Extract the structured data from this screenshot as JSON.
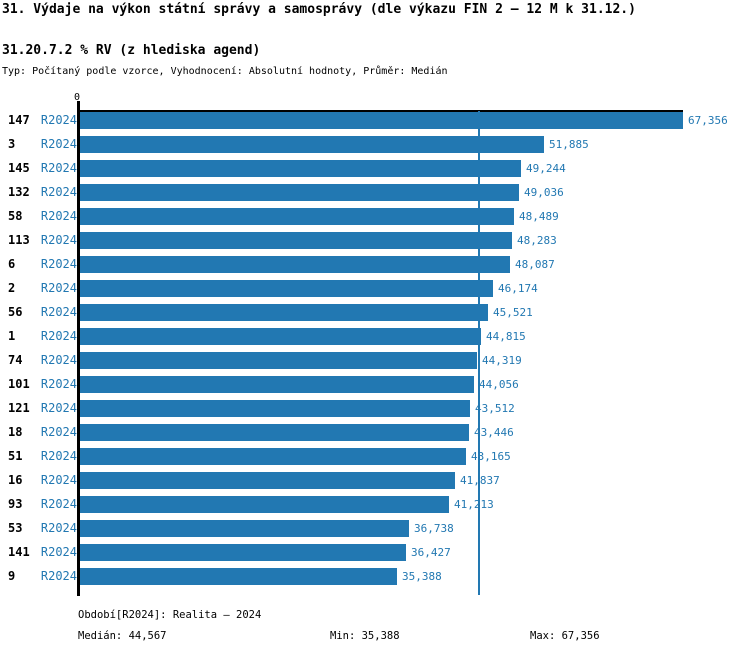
{
  "title": "31. Výdaje na výkon státní správy a samosprávy (dle výkazu FIN 2 – 12 M k 31.12.)",
  "subtitle": "31.20.7.2 % RV (z hlediska agend)",
  "meta_line": "Typ: Počítaný podle vzorce, Vyhodnocení: Absolutní hodnoty, Průměr: Medián",
  "axis": {
    "zero_label": "0"
  },
  "chart_data": {
    "type": "bar",
    "orientation": "horizontal",
    "title": "31.20.7.2 % RV (z hlediska agend)",
    "categories": [
      "147",
      "3",
      "145",
      "132",
      "58",
      "113",
      "6",
      "2",
      "56",
      "1",
      "74",
      "101",
      "121",
      "18",
      "51",
      "16",
      "93",
      "53",
      "141",
      "9"
    ],
    "series_label": "R2024",
    "values": [
      67356,
      51885,
      49244,
      49036,
      48489,
      48283,
      48087,
      46174,
      45521,
      44815,
      44319,
      44056,
      43512,
      43446,
      43165,
      41837,
      41213,
      36738,
      36427,
      35388
    ],
    "value_labels": [
      "67,356",
      "51,885",
      "49,244",
      "49,036",
      "48,489",
      "48,283",
      "48,087",
      "46,174",
      "45,521",
      "44,815",
      "44,319",
      "44,056",
      "43,512",
      "43,446",
      "43,165",
      "41,837",
      "41,213",
      "36,738",
      "36,427",
      "35,388"
    ],
    "xlim": [
      0,
      67356
    ],
    "median": 44567,
    "grid": false,
    "legend": "none",
    "bar_color": "#2278b2",
    "median_line_color": "#2278b2",
    "label_color": "#2278b2",
    "category_color": "#000000"
  },
  "footer": {
    "period": "Období[R2024]: Realita – 2024",
    "median": "Medián: 44,567",
    "min": "Min: 35,388",
    "max": "Max: 67,356"
  },
  "colors": {
    "accent": "#2278b2",
    "axis": "#000000",
    "background": "#ffffff"
  }
}
